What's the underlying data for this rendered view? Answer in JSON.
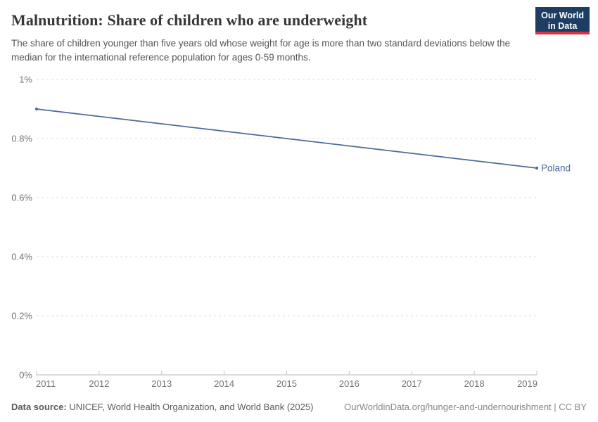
{
  "header": {
    "title": "Malnutrition: Share of children who are underweight",
    "subtitle": "The share of children younger than five years old whose weight for age is more than two standard deviations below the median for the international reference population for ages 0-59 months.",
    "logo": {
      "line1": "Our World",
      "line2": "in Data",
      "bg_color": "#1d3d63",
      "accent_color": "#d7343f"
    }
  },
  "chart_data": {
    "type": "line",
    "title": "Malnutrition: Share of children who are underweight",
    "xlabel": "",
    "ylabel": "",
    "xlim": [
      2011,
      2019
    ],
    "ylim": [
      0,
      1
    ],
    "grid": "horizontal-dashed",
    "legend_position": "end-of-line-label",
    "x_ticks": [
      2011,
      2012,
      2013,
      2014,
      2015,
      2016,
      2017,
      2018,
      2019
    ],
    "y_ticks": [
      {
        "value": 0,
        "label": "0%"
      },
      {
        "value": 0.2,
        "label": "0.2%"
      },
      {
        "value": 0.4,
        "label": "0.4%"
      },
      {
        "value": 0.6,
        "label": "0.6%"
      },
      {
        "value": 0.8,
        "label": "0.8%"
      },
      {
        "value": 1,
        "label": "1%"
      }
    ],
    "series": [
      {
        "name": "Poland",
        "color": "#4c6a9c",
        "x": [
          2011,
          2019
        ],
        "y": [
          0.9,
          0.7
        ]
      }
    ]
  },
  "footer": {
    "source_prefix": "Data source:",
    "source_text": " UNICEF, World Health Organization, and World Bank (2025)",
    "link_text": "OurWorldinData.org/hunger-and-undernourishment | CC BY"
  }
}
